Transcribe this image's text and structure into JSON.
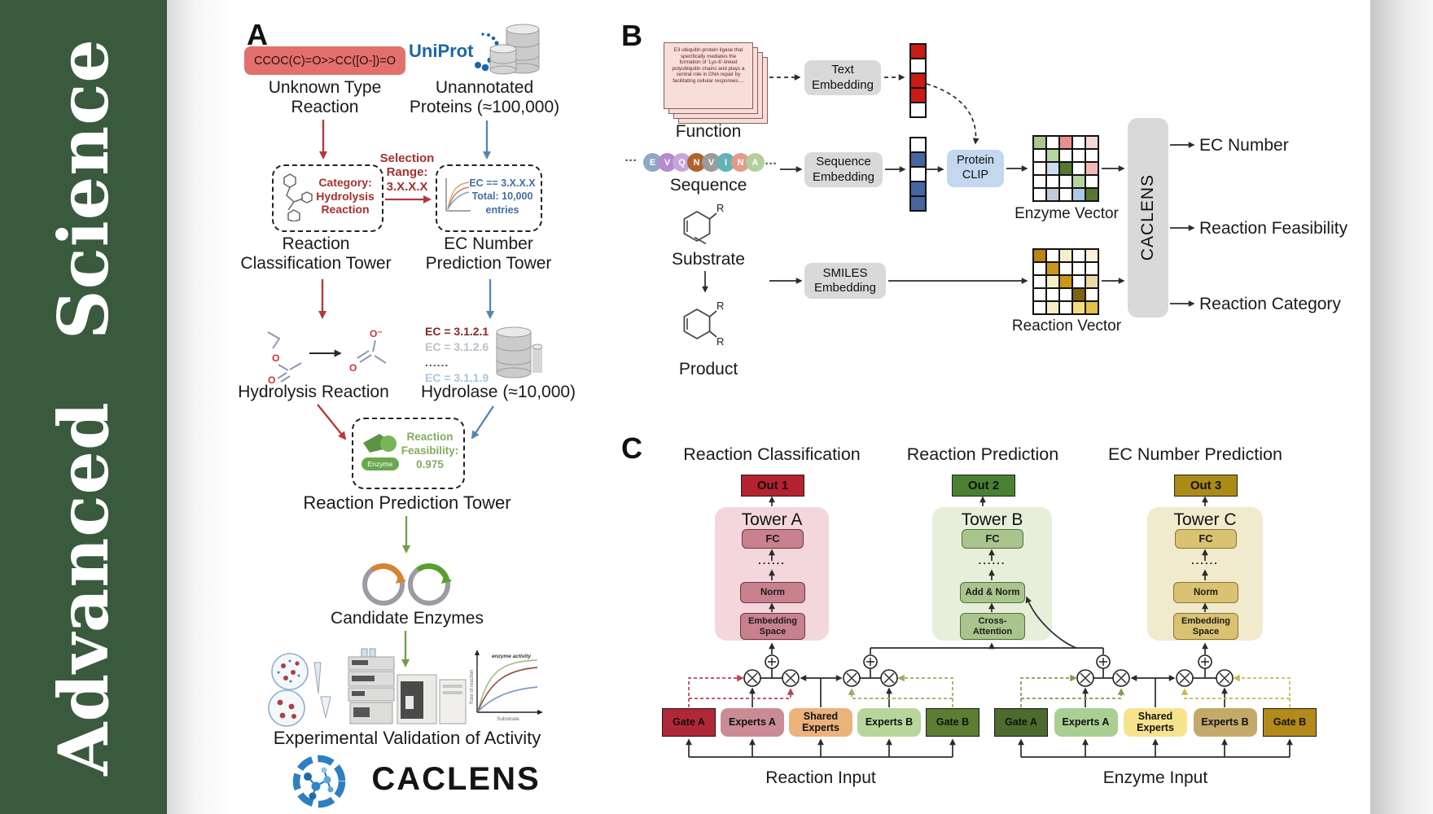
{
  "sidebar": {
    "journal": "Advanced Science"
  },
  "panelA": {
    "label": "A",
    "smiles": "CCOC(C)=O>>CC([O-])=O",
    "unknown_reaction": "Unknown Type\nReaction",
    "uniprot": "UniProt",
    "unannotated": "Unannotated\nProteins (≈100,000)",
    "category_box": "Category:\nHydrolysis\nReaction",
    "selection": "Selection\nRange:\n3.X.X.X",
    "ec_box": "EC == 3.X.X.X\nTotal: 10,000\nentries",
    "classification_tower": "Reaction\nClassification Tower",
    "ec_tower": "EC Number\nPrediction Tower",
    "hydrolysis_label": "Hydrolysis Reaction",
    "ec_list": [
      "EC = 3.1.2.1",
      "EC = 3.1.2.6",
      "......",
      "EC = 3.1.1.9"
    ],
    "hydrolase_label": "Hydrolase (≈10,000)",
    "enzyme_badge": "Enzyme",
    "feasibility": "Reaction\nFeasibility:\n0.975",
    "prediction_tower": "Reaction Prediction Tower",
    "candidates": "Candidate Enzymes",
    "validation": "Experimental Validation of Activity",
    "brand": "CACLENS",
    "atoms": {
      "o": "O",
      "ominus": "O⁻"
    },
    "plot": {
      "ylabel": "Rate of reaction",
      "xlabel": "Substrate",
      "annotation": "enzyme activity"
    }
  },
  "panelB": {
    "label": "B",
    "function_card": "E3 ubiquitin-protein ligase that specifically mediates the formation of 'Lys-6'-linked polyubiquitin chains and plays a central role in DNA repair by facilitating cellular responses....",
    "function_label": "Function",
    "ellipsis": "···",
    "sequence_bubbles": [
      {
        "ch": "E",
        "color": "#8ea7c5"
      },
      {
        "ch": "V",
        "color": "#b48ad0"
      },
      {
        "ch": "Q",
        "color": "#c7a6db"
      },
      {
        "ch": "N",
        "color": "#b1622a"
      },
      {
        "ch": "V",
        "color": "#9b9b9b"
      },
      {
        "ch": "I",
        "color": "#62b3b5"
      },
      {
        "ch": "N",
        "color": "#e59a88"
      },
      {
        "ch": "A",
        "color": "#b3cf9b"
      }
    ],
    "sequence_label": "Sequence",
    "substrate_label": "Substrate",
    "product_label": "Product",
    "r": "R",
    "text_embedding": "Text\nEmbedding",
    "sequence_embedding": "Sequence\nEmbedding",
    "smiles_embedding": "SMILES\nEmbedding",
    "protein_clip": "Protein\nCLIP",
    "text_vector": [
      "#cc1a15",
      "#ffffff",
      "#cc1a15",
      "#cc1a15",
      "#ffffff"
    ],
    "sequence_vector": [
      "#ffffff",
      "#47659f",
      "#ffffff",
      "#47659f",
      "#47659f"
    ],
    "enzyme_matrix": [
      [
        "#a9c98b",
        "#ffffff",
        "#e98f90",
        "#ffffff",
        "#f6d7d6"
      ],
      [
        "#ffffff",
        "#b7d3a0",
        "#ffffff",
        "#ffffff",
        "#ffffff"
      ],
      [
        "#ffffff",
        "#ccdcf0",
        "#55782f",
        "#ffffff",
        "#f2b9b8"
      ],
      [
        "#ffffff",
        "#ffffff",
        "#ffffff",
        "#b7d3a0",
        "#ffffff"
      ],
      [
        "#ffffff",
        "#bfcbd8",
        "#ffffff",
        "#aec8e8",
        "#55782f"
      ]
    ],
    "reaction_matrix": [
      [
        "#b8860f",
        "#ffffff",
        "#f6eec9",
        "#ffffff",
        "#faf3d8"
      ],
      [
        "#ffffff",
        "#c9971c",
        "#ffffff",
        "#ffffff",
        "#ffffff"
      ],
      [
        "#ffffff",
        "#f6eec9",
        "#c9971c",
        "#ffffff",
        "#ead9a4"
      ],
      [
        "#ffffff",
        "#ffffff",
        "#ffffff",
        "#7d6410",
        "#ffffff"
      ],
      [
        "#ffffff",
        "#f6eec9",
        "#ffffff",
        "#f2dc7d",
        "#e3c14a"
      ]
    ],
    "enzyme_vector_label": "Enzyme Vector",
    "reaction_vector_label": "Reaction Vector",
    "caclens": "CACLENS",
    "outputs": [
      "EC Number",
      "Reaction Feasibility",
      "Reaction Category"
    ]
  },
  "panelC": {
    "label": "C",
    "headers": [
      "Reaction Classification",
      "Reaction Prediction",
      "EC Number Prediction"
    ],
    "outs": [
      {
        "label": "Out 1",
        "color": "#b52230"
      },
      {
        "label": "Out 2",
        "color": "#4a8032"
      },
      {
        "label": "Out 3",
        "color": "#ab8b15"
      }
    ],
    "towers": [
      {
        "name": "Tower A",
        "fc": "FC",
        "dots": "......",
        "mid": "Norm",
        "bottom": "Embedding\nSpace"
      },
      {
        "name": "Tower B",
        "fc": "FC",
        "dots": "......",
        "mid": "Add & Norm",
        "bottom": "Cross-\nAttention"
      },
      {
        "name": "Tower C",
        "fc": "FC",
        "dots": "......",
        "mid": "Norm",
        "bottom": "Embedding\nSpace"
      }
    ],
    "moe_left": {
      "input": "Reaction Input",
      "boxes": [
        {
          "label": "Gate A",
          "color": "#b02837",
          "kind": "gate"
        },
        {
          "label": "Experts A",
          "color": "#cb8b94",
          "kind": "expert"
        },
        {
          "label": "Shared\nExperts",
          "color": "#ecb27c",
          "kind": "expert"
        },
        {
          "label": "Experts B",
          "color": "#b7d69b",
          "kind": "expert"
        },
        {
          "label": "Gate B",
          "color": "#5d7d33",
          "kind": "gate"
        }
      ]
    },
    "moe_right": {
      "input": "Enzyme Input",
      "boxes": [
        {
          "label": "Gate A",
          "color": "#4e6b2f",
          "kind": "gate"
        },
        {
          "label": "Experts A",
          "color": "#a9cf92",
          "kind": "expert"
        },
        {
          "label": "Shared\nExperts",
          "color": "#f7e38e",
          "kind": "expert"
        },
        {
          "label": "Experts B",
          "color": "#c4aa6a",
          "kind": "expert"
        },
        {
          "label": "Gate B",
          "color": "#b3891a",
          "kind": "gate"
        }
      ]
    }
  }
}
